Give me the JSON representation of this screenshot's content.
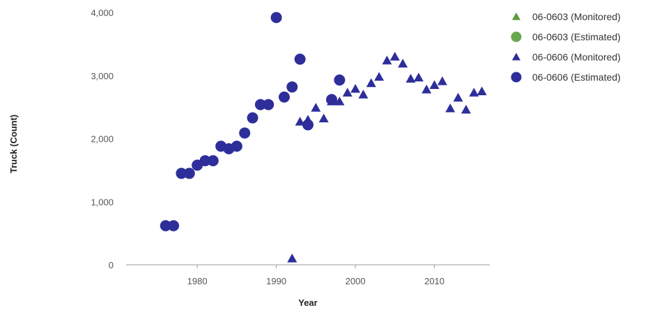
{
  "chart_data": {
    "type": "scatter",
    "xlabel": "Year",
    "ylabel": "Truck (Count)",
    "xlim": [
      1971,
      2017
    ],
    "ylim": [
      0,
      4000
    ],
    "x_ticks": [
      1980,
      1990,
      2000,
      2010
    ],
    "x_tick_labels": [
      "1980",
      "1990",
      "2000",
      "2010"
    ],
    "y_ticks": [
      0,
      1000,
      2000,
      3000,
      4000
    ],
    "y_tick_labels": [
      "0",
      "1,000",
      "2,000",
      "3,000",
      "4,000"
    ],
    "grid": false,
    "legend_position": "top-right",
    "series": [
      {
        "name": "06-0603 (Monitored)",
        "marker": "triangle",
        "color": "#5a9a3c",
        "points": []
      },
      {
        "name": "06-0603 (Estimated)",
        "marker": "circle",
        "color": "#6aa84f",
        "points": []
      },
      {
        "name": "06-0606 (Monitored)",
        "marker": "triangle",
        "color": "#2e2e9a",
        "points": [
          [
            1992,
            100
          ],
          [
            1993,
            2270
          ],
          [
            1994,
            2300
          ],
          [
            1995,
            2490
          ],
          [
            1996,
            2320
          ],
          [
            1997,
            2590
          ],
          [
            1998,
            2590
          ],
          [
            1999,
            2730
          ],
          [
            2000,
            2790
          ],
          [
            2001,
            2700
          ],
          [
            2002,
            2880
          ],
          [
            2003,
            2980
          ],
          [
            2004,
            3240
          ],
          [
            2005,
            3300
          ],
          [
            2006,
            3190
          ],
          [
            2007,
            2950
          ],
          [
            2008,
            2970
          ],
          [
            2009,
            2780
          ],
          [
            2010,
            2850
          ],
          [
            2011,
            2910
          ],
          [
            2012,
            2480
          ],
          [
            2013,
            2650
          ],
          [
            2014,
            2460
          ],
          [
            2015,
            2730
          ],
          [
            2016,
            2750
          ]
        ]
      },
      {
        "name": "06-0606 (Estimated)",
        "marker": "circle",
        "color": "#2e2e9a",
        "points": [
          [
            1976,
            620
          ],
          [
            1977,
            620
          ],
          [
            1978,
            1450
          ],
          [
            1979,
            1450
          ],
          [
            1980,
            1580
          ],
          [
            1981,
            1650
          ],
          [
            1982,
            1650
          ],
          [
            1983,
            1880
          ],
          [
            1984,
            1840
          ],
          [
            1985,
            1880
          ],
          [
            1986,
            2090
          ],
          [
            1987,
            2330
          ],
          [
            1988,
            2540
          ],
          [
            1989,
            2540
          ],
          [
            1990,
            3920
          ],
          [
            1991,
            2660
          ],
          [
            1992,
            2820
          ],
          [
            1993,
            3260
          ],
          [
            1994,
            2220
          ],
          [
            1997,
            2620
          ],
          [
            1998,
            2930
          ]
        ]
      }
    ]
  }
}
